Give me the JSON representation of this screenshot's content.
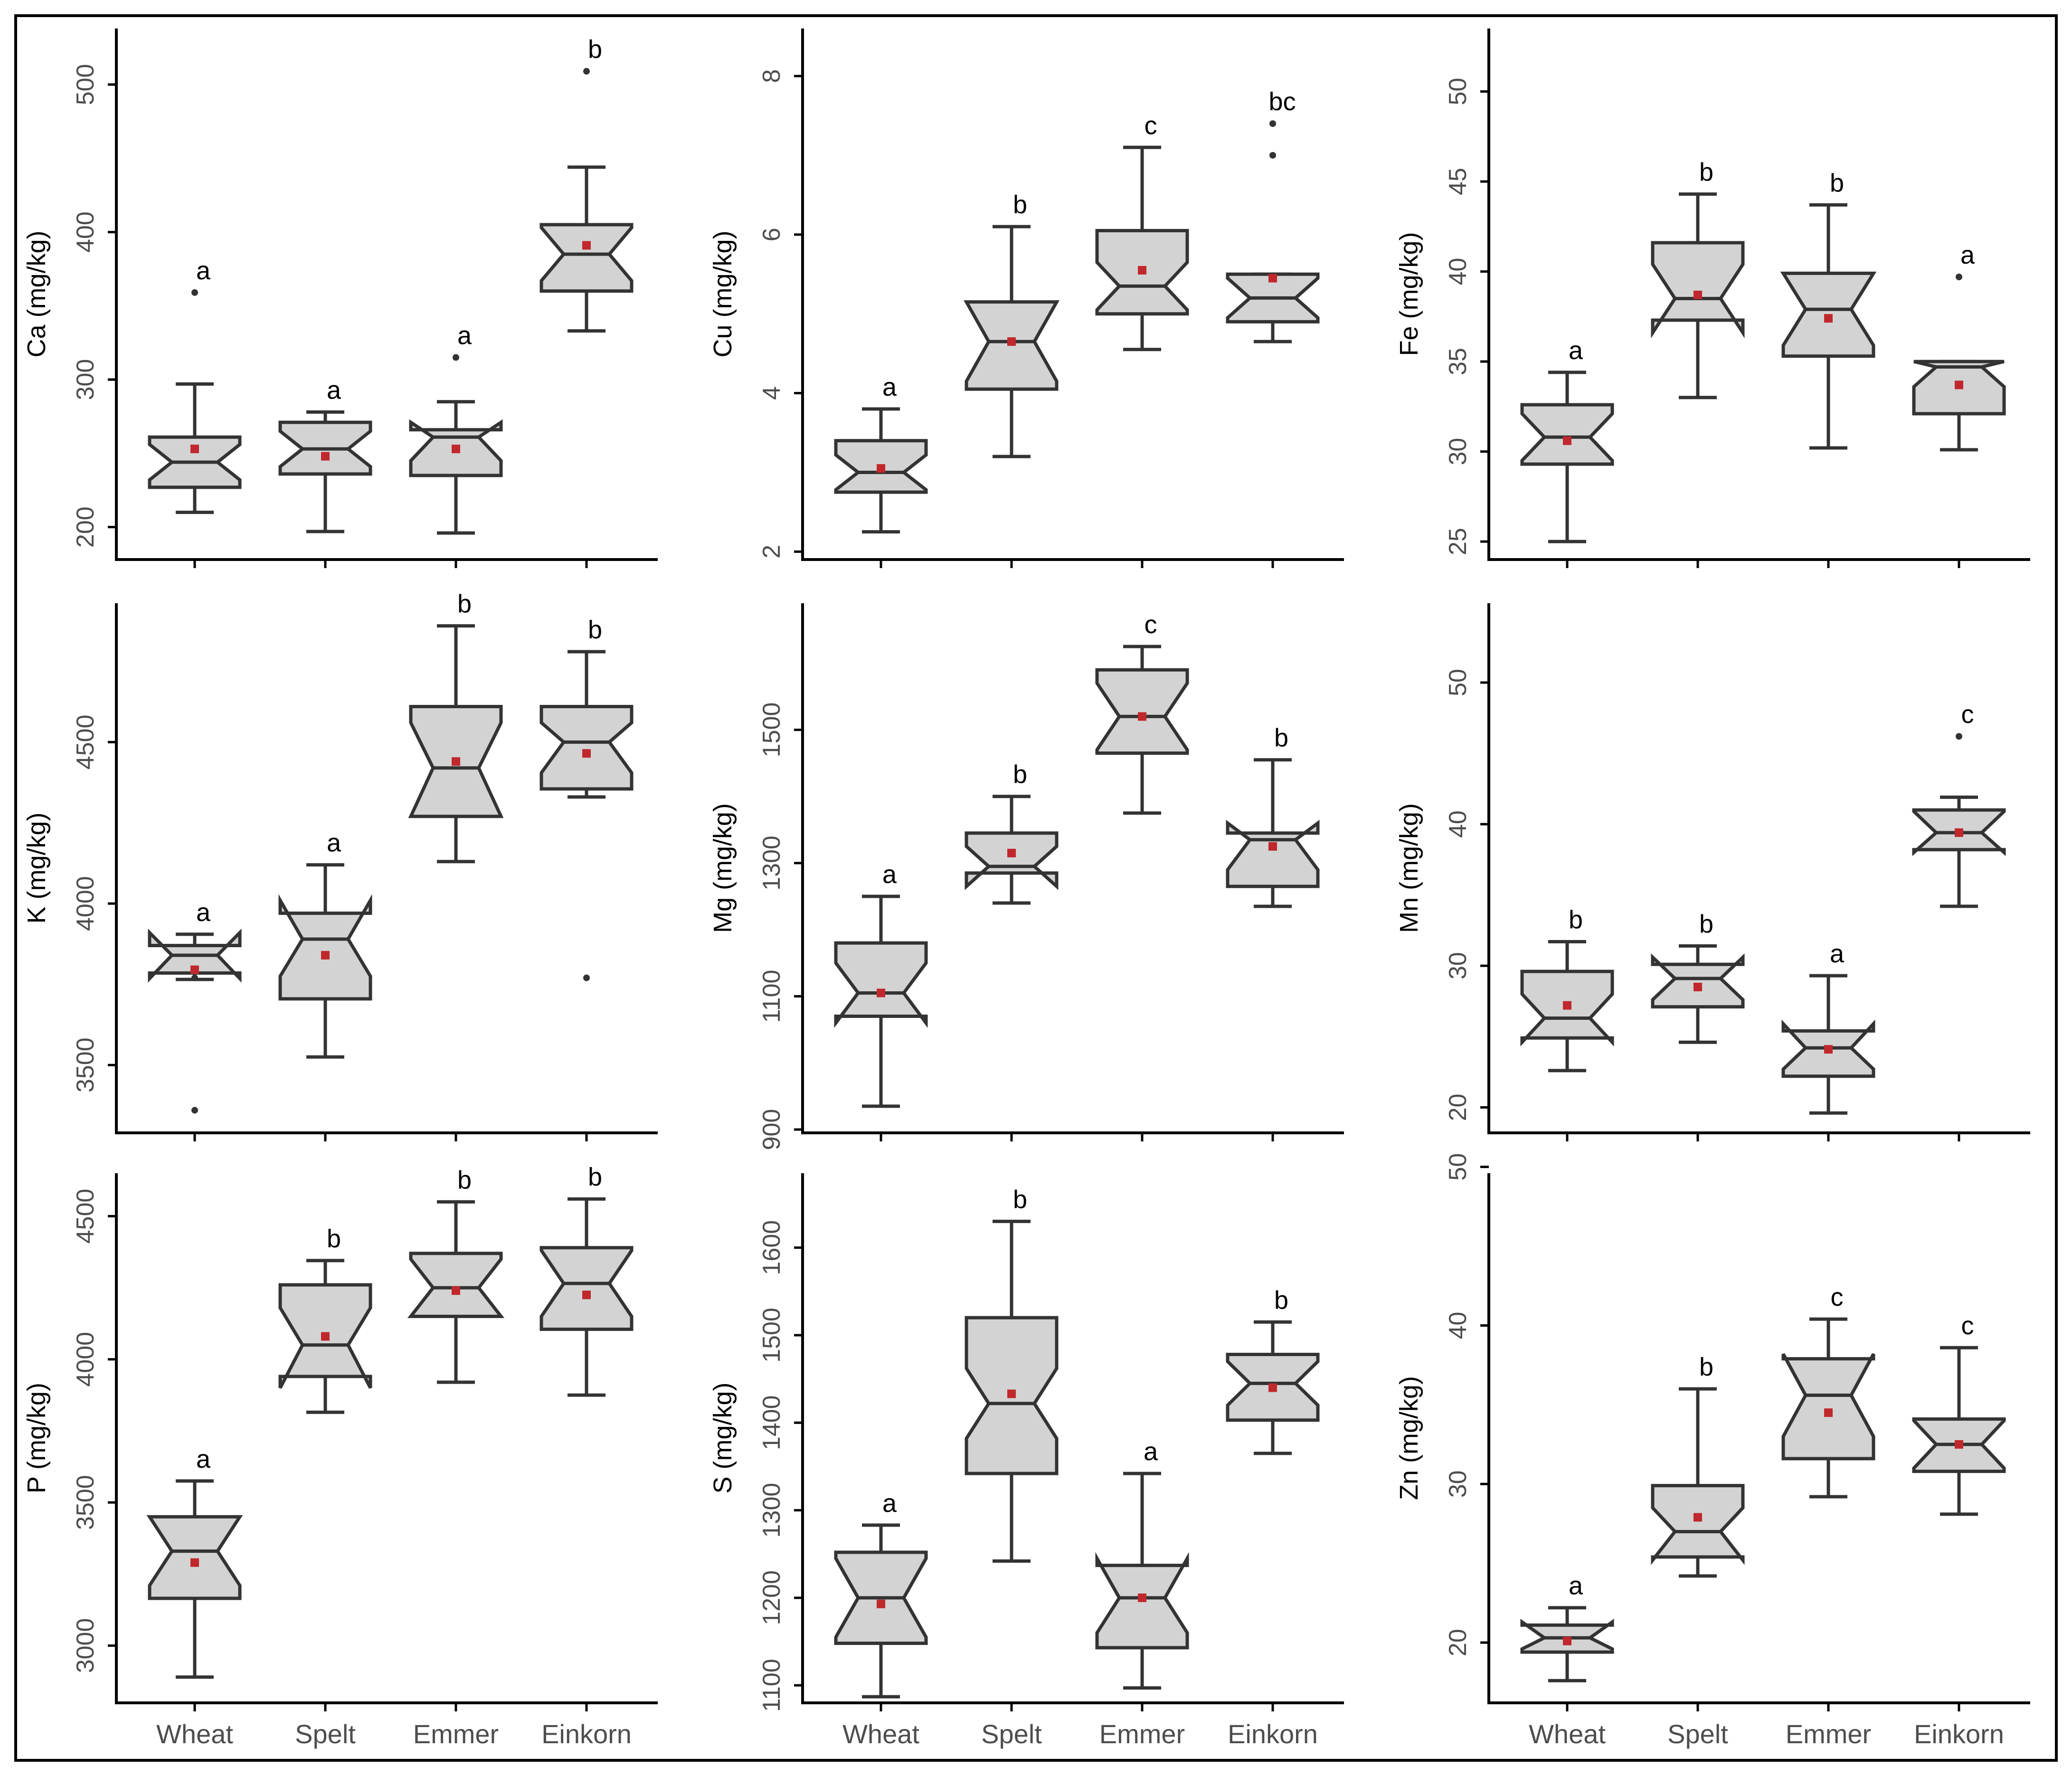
{
  "figure": {
    "categories": [
      "Wheat",
      "Spelt",
      "Emmer",
      "Einkorn"
    ],
    "colors": {
      "box_fill": "#d3d3d3",
      "box_stroke": "#333333",
      "mean_marker": "#c0282d",
      "axis": "#000000",
      "tick_text": "#4d4d4d",
      "letter_text": "#000000"
    }
  },
  "chart_data": [
    {
      "type": "box",
      "ylabel": "Ca (mg/kg)",
      "ylim": [
        178,
        538
      ],
      "yticks": [
        200,
        300,
        400,
        500
      ],
      "categories": [
        "Wheat",
        "Spelt",
        "Emmer",
        "Einkorn"
      ],
      "series": [
        {
          "category": "Wheat",
          "min": 210,
          "q1": 227,
          "median": 244,
          "q3": 261,
          "max": 297,
          "notch_low": 232,
          "notch_high": 256,
          "mean": 253,
          "outliers": [
            359
          ],
          "letter": "a"
        },
        {
          "category": "Spelt",
          "min": 197,
          "q1": 236,
          "median": 253,
          "q3": 271,
          "max": 278,
          "notch_low": 241,
          "notch_high": 265,
          "mean": 248,
          "outliers": [],
          "letter": "a"
        },
        {
          "category": "Emmer",
          "min": 196,
          "q1": 235,
          "median": 261,
          "q3": 266,
          "max": 285,
          "notch_low": 245,
          "notch_high": 271,
          "mean": 253,
          "outliers": [
            315
          ],
          "letter": "a"
        },
        {
          "category": "Einkorn",
          "min": 333,
          "q1": 360,
          "median": 385,
          "q3": 405,
          "max": 444,
          "notch_low": 367,
          "notch_high": 403,
          "mean": 391,
          "outliers": [
            509
          ],
          "letter": "b"
        }
      ]
    },
    {
      "type": "box",
      "ylabel": "Cu (mg/kg)",
      "ylim": [
        1.9,
        8.6
      ],
      "yticks": [
        2,
        4,
        6,
        8
      ],
      "categories": [
        "Wheat",
        "Spelt",
        "Emmer",
        "Einkorn"
      ],
      "series": [
        {
          "category": "Wheat",
          "min": 2.25,
          "q1": 2.75,
          "median": 3.0,
          "q3": 3.4,
          "max": 3.8,
          "notch_low": 2.78,
          "notch_high": 3.22,
          "mean": 3.05,
          "outliers": [],
          "letter": "a"
        },
        {
          "category": "Spelt",
          "min": 3.2,
          "q1": 4.05,
          "median": 4.65,
          "q3": 5.15,
          "max": 6.1,
          "notch_low": 4.15,
          "notch_high": 5.15,
          "mean": 4.65,
          "outliers": [],
          "letter": "b"
        },
        {
          "category": "Emmer",
          "min": 4.55,
          "q1": 5.0,
          "median": 5.35,
          "q3": 6.05,
          "max": 7.1,
          "notch_low": 5.05,
          "notch_high": 5.65,
          "mean": 5.55,
          "outliers": [],
          "letter": "c"
        },
        {
          "category": "Einkorn",
          "min": 4.65,
          "q1": 4.9,
          "median": 5.2,
          "q3": 5.5,
          "max": 5.5,
          "notch_low": 4.95,
          "notch_high": 5.45,
          "mean": 5.45,
          "outliers": [
            7.0,
            7.4
          ],
          "letter": "bc"
        }
      ]
    },
    {
      "type": "box",
      "ylabel": "Fe (mg/kg)",
      "ylim": [
        24.0,
        53.5
      ],
      "yticks": [
        25,
        30,
        35,
        40,
        45,
        50
      ],
      "categories": [
        "Wheat",
        "Spelt",
        "Emmer",
        "Einkorn"
      ],
      "series": [
        {
          "category": "Wheat",
          "min": 25.0,
          "q1": 29.3,
          "median": 30.8,
          "q3": 32.6,
          "max": 34.4,
          "notch_low": 29.5,
          "notch_high": 32.1,
          "mean": 30.6,
          "outliers": [],
          "letter": "a"
        },
        {
          "category": "Spelt",
          "min": 33.0,
          "q1": 37.3,
          "median": 38.5,
          "q3": 41.6,
          "max": 44.3,
          "notch_low": 36.6,
          "notch_high": 40.4,
          "mean": 38.7,
          "outliers": [],
          "letter": "b"
        },
        {
          "category": "Emmer",
          "min": 30.2,
          "q1": 35.3,
          "median": 37.9,
          "q3": 39.9,
          "max": 43.7,
          "notch_low": 35.9,
          "notch_high": 39.9,
          "mean": 37.4,
          "outliers": [],
          "letter": "b"
        },
        {
          "category": "Einkorn",
          "min": 30.1,
          "q1": 32.1,
          "median": 34.7,
          "q3": 35.0,
          "max": 35.0,
          "notch_low": 33.6,
          "notch_high": 35.0,
          "mean": 33.7,
          "outliers": [
            39.7
          ],
          "letter": "a"
        }
      ]
    },
    {
      "type": "box",
      "ylabel": "K (mg/kg)",
      "ylim": [
        3290,
        4930
      ],
      "yticks": [
        3500,
        4000,
        4500
      ],
      "categories": [
        "Wheat",
        "Spelt",
        "Emmer",
        "Einkorn"
      ],
      "series": [
        {
          "category": "Wheat",
          "min": 3765,
          "q1": 3785,
          "median": 3840,
          "q3": 3870,
          "max": 3905,
          "notch_low": 3768,
          "notch_high": 3910,
          "mean": 3795,
          "outliers": [
            3360,
            3770
          ],
          "letter": "a"
        },
        {
          "category": "Spelt",
          "min": 3525,
          "q1": 3705,
          "median": 3890,
          "q3": 3970,
          "max": 4120,
          "notch_low": 3775,
          "notch_high": 4010,
          "mean": 3840,
          "outliers": [],
          "letter": "a"
        },
        {
          "category": "Emmer",
          "min": 4130,
          "q1": 4270,
          "median": 4420,
          "q3": 4610,
          "max": 4860,
          "notch_low": 4270,
          "notch_high": 4560,
          "mean": 4440,
          "outliers": [],
          "letter": "b"
        },
        {
          "category": "Einkorn",
          "min": 4330,
          "q1": 4355,
          "median": 4500,
          "q3": 4610,
          "max": 4780,
          "notch_low": 4405,
          "notch_high": 4560,
          "mean": 4465,
          "outliers": [
            3770
          ],
          "letter": "b"
        }
      ]
    },
    {
      "type": "box",
      "ylabel": "Mg (mg/kg)",
      "ylim": [
        895,
        1690
      ],
      "yticks": [
        900,
        1100,
        1300,
        1500
      ],
      "categories": [
        "Wheat",
        "Spelt",
        "Emmer",
        "Einkorn"
      ],
      "series": [
        {
          "category": "Wheat",
          "min": 935,
          "q1": 1070,
          "median": 1105,
          "q3": 1180,
          "max": 1250,
          "notch_low": 1060,
          "notch_high": 1150,
          "mean": 1105,
          "outliers": [],
          "letter": "a"
        },
        {
          "category": "Spelt",
          "min": 1240,
          "q1": 1285,
          "median": 1295,
          "q3": 1345,
          "max": 1400,
          "notch_low": 1265,
          "notch_high": 1325,
          "mean": 1315,
          "outliers": [],
          "letter": "b"
        },
        {
          "category": "Emmer",
          "min": 1375,
          "q1": 1465,
          "median": 1520,
          "q3": 1590,
          "max": 1625,
          "notch_low": 1470,
          "notch_high": 1570,
          "mean": 1520,
          "outliers": [],
          "letter": "c"
        },
        {
          "category": "Einkorn",
          "min": 1235,
          "q1": 1265,
          "median": 1335,
          "q3": 1345,
          "max": 1455,
          "notch_low": 1290,
          "notch_high": 1360,
          "mean": 1325,
          "outliers": [],
          "letter": "b"
        }
      ]
    },
    {
      "type": "box",
      "ylabel": "Mn (mg/kg)",
      "ylim": [
        18.2,
        55.6
      ],
      "yticks": [
        20,
        30,
        40,
        50
      ],
      "categories": [
        "Wheat",
        "Spelt",
        "Emmer",
        "Einkorn"
      ],
      "series": [
        {
          "category": "Wheat",
          "min": 22.6,
          "q1": 24.9,
          "median": 26.3,
          "q3": 29.6,
          "max": 31.7,
          "notch_low": 24.6,
          "notch_high": 28.0,
          "mean": 27.2,
          "outliers": [],
          "letter": "b"
        },
        {
          "category": "Spelt",
          "min": 24.6,
          "q1": 27.1,
          "median": 29.1,
          "q3": 30.1,
          "max": 31.4,
          "notch_low": 27.6,
          "notch_high": 30.6,
          "mean": 28.5,
          "outliers": [],
          "letter": "b"
        },
        {
          "category": "Emmer",
          "min": 19.6,
          "q1": 22.2,
          "median": 24.2,
          "q3": 25.4,
          "max": 29.3,
          "notch_low": 22.7,
          "notch_high": 25.9,
          "mean": 24.1,
          "outliers": [],
          "letter": "a"
        },
        {
          "category": "Einkorn",
          "min": 34.2,
          "q1": 38.2,
          "median": 39.4,
          "q3": 41.0,
          "max": 41.9,
          "notch_low": 38.0,
          "notch_high": 40.9,
          "mean": 39.4,
          "outliers": [
            46.2
          ],
          "letter": "c"
        }
      ]
    },
    {
      "type": "box",
      "ylabel": "P (mg/kg)",
      "ylim": [
        2800,
        4650
      ],
      "yticks": [
        3000,
        3500,
        4000,
        4500
      ],
      "categories": [
        "Wheat",
        "Spelt",
        "Emmer",
        "Einkorn"
      ],
      "series": [
        {
          "category": "Wheat",
          "min": 2890,
          "q1": 3165,
          "median": 3330,
          "q3": 3450,
          "max": 3575,
          "notch_low": 3210,
          "notch_high": 3450,
          "mean": 3290,
          "outliers": [],
          "letter": "a"
        },
        {
          "category": "Spelt",
          "min": 3815,
          "q1": 3940,
          "median": 4050,
          "q3": 4260,
          "max": 4345,
          "notch_low": 3900,
          "notch_high": 4180,
          "mean": 4080,
          "outliers": [],
          "letter": "b"
        },
        {
          "category": "Emmer",
          "min": 3920,
          "q1": 4150,
          "median": 4250,
          "q3": 4370,
          "max": 4550,
          "notch_low": 4150,
          "notch_high": 4350,
          "mean": 4240,
          "outliers": [],
          "letter": "b"
        },
        {
          "category": "Einkorn",
          "min": 3875,
          "q1": 4105,
          "median": 4265,
          "q3": 4390,
          "max": 4560,
          "notch_low": 4150,
          "notch_high": 4380,
          "mean": 4225,
          "outliers": [],
          "letter": "b"
        }
      ]
    },
    {
      "type": "box",
      "ylabel": "S (mg/kg)",
      "ylim": [
        1080,
        1685
      ],
      "yticks": [
        1100,
        1200,
        1300,
        1400,
        1500,
        1600
      ],
      "categories": [
        "Wheat",
        "Spelt",
        "Emmer",
        "Einkorn"
      ],
      "series": [
        {
          "category": "Wheat",
          "min": 1087,
          "q1": 1148,
          "median": 1200,
          "q3": 1252,
          "max": 1283,
          "notch_low": 1155,
          "notch_high": 1245,
          "mean": 1193,
          "outliers": [],
          "letter": "a"
        },
        {
          "category": "Spelt",
          "min": 1242,
          "q1": 1342,
          "median": 1422,
          "q3": 1520,
          "max": 1630,
          "notch_low": 1382,
          "notch_high": 1462,
          "mean": 1433,
          "outliers": [],
          "letter": "b"
        },
        {
          "category": "Emmer",
          "min": 1097,
          "q1": 1143,
          "median": 1200,
          "q3": 1237,
          "max": 1342,
          "notch_low": 1160,
          "notch_high": 1245,
          "mean": 1200,
          "outliers": [],
          "letter": "a"
        },
        {
          "category": "Einkorn",
          "min": 1365,
          "q1": 1403,
          "median": 1445,
          "q3": 1478,
          "max": 1515,
          "notch_low": 1420,
          "notch_high": 1470,
          "mean": 1440,
          "outliers": [],
          "letter": "b"
        }
      ]
    },
    {
      "type": "box",
      "ylabel": "Zn (mg/kg)",
      "ylim": [
        16.2,
        49.6
      ],
      "yticks": [
        20,
        30,
        40,
        50
      ],
      "categories": [
        "Wheat",
        "Spelt",
        "Emmer",
        "Einkorn"
      ],
      "series": [
        {
          "category": "Wheat",
          "min": 17.6,
          "q1": 19.4,
          "median": 20.3,
          "q3": 21.1,
          "max": 22.2,
          "notch_low": 19.6,
          "notch_high": 21.3,
          "mean": 20.1,
          "outliers": [],
          "letter": "a"
        },
        {
          "category": "Spelt",
          "min": 24.2,
          "q1": 25.4,
          "median": 27.0,
          "q3": 29.9,
          "max": 36.0,
          "notch_low": 25.2,
          "notch_high": 28.5,
          "mean": 27.9,
          "outliers": [],
          "letter": "b"
        },
        {
          "category": "Emmer",
          "min": 29.2,
          "q1": 31.6,
          "median": 35.6,
          "q3": 37.9,
          "max": 40.4,
          "notch_low": 33.0,
          "notch_high": 38.2,
          "mean": 34.5,
          "outliers": [],
          "letter": "c"
        },
        {
          "category": "Einkorn",
          "min": 28.1,
          "q1": 30.8,
          "median": 32.5,
          "q3": 34.1,
          "max": 38.6,
          "notch_low": 31.0,
          "notch_high": 34.0,
          "mean": 32.5,
          "outliers": [],
          "letter": "c"
        }
      ]
    }
  ]
}
